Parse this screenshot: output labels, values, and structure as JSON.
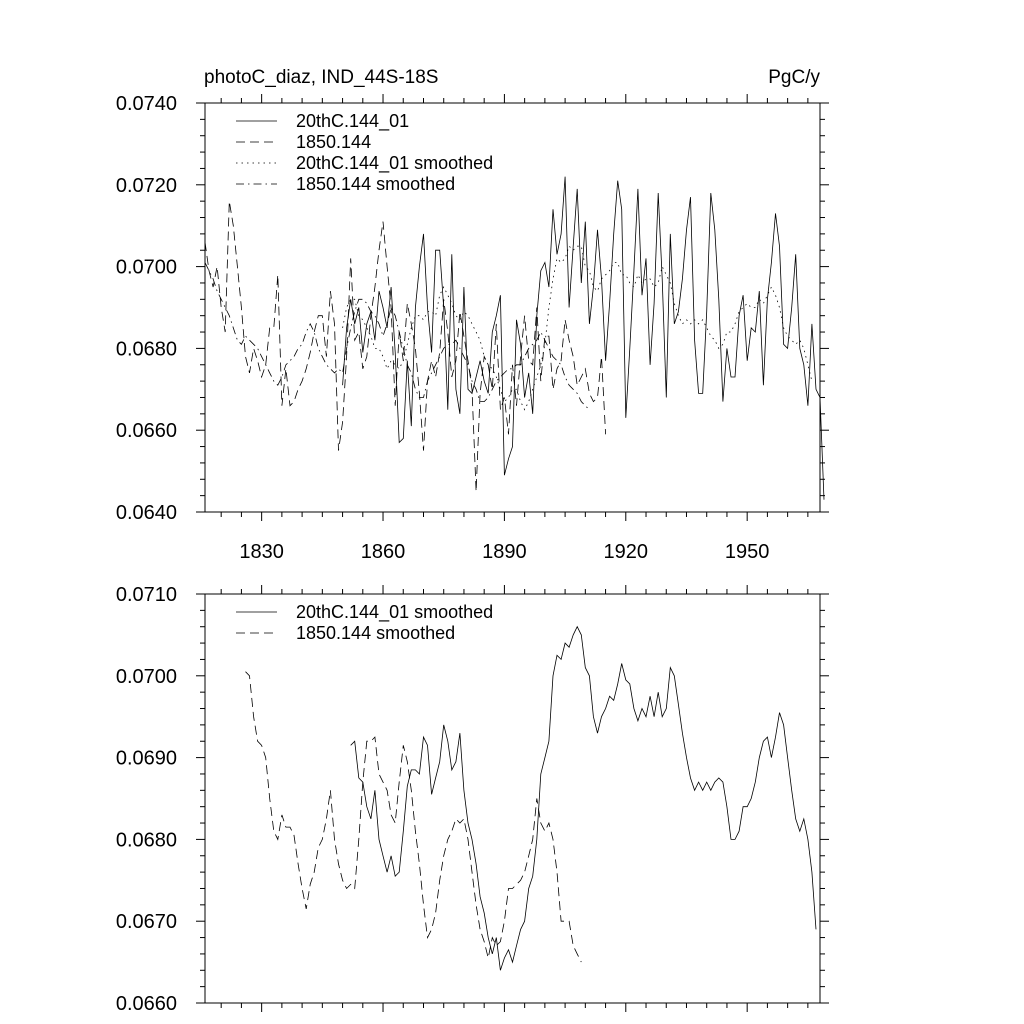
{
  "chart_data": [
    {
      "type": "line",
      "title": "photoC_diaz, IND_44S-18S",
      "units": "PgC/y",
      "xlim": [
        1816,
        1968
      ],
      "ylim": [
        0.064,
        0.074
      ],
      "xticks": [
        1830,
        1860,
        1890,
        1920,
        1950
      ],
      "xtick_labels": [
        "1830",
        "1860",
        "1890",
        "1920",
        "1950"
      ],
      "yticks": [
        0.064,
        0.066,
        0.068,
        0.07,
        0.072,
        0.074
      ],
      "ytick_labels": [
        "0.0640",
        "0.0660",
        "0.0680",
        "0.0700",
        "0.0720",
        "0.0740"
      ],
      "legend_position": "top-left",
      "series": [
        {
          "name": "20thC.144_01",
          "style": "solid",
          "x_start": 1850,
          "values": [
            0.0671,
            0.0685,
            0.0692,
            0.0686,
            0.069,
            0.0679,
            0.0686,
            0.0689,
            0.0682,
            0.0694,
            0.069,
            0.0685,
            0.0695,
            0.0679,
            0.0657,
            0.0658,
            0.0677,
            0.0661,
            0.069,
            0.07,
            0.0708,
            0.069,
            0.0679,
            0.0704,
            0.0704,
            0.069,
            0.0665,
            0.0703,
            0.067,
            0.0664,
            0.0695,
            0.067,
            0.0669,
            0.0673,
            0.0677,
            0.0672,
            0.0669,
            0.0684,
            0.0688,
            0.0693,
            0.0649,
            0.0653,
            0.0656,
            0.0687,
            0.0681,
            0.0668,
            0.0674,
            0.0664,
            0.0688,
            0.0699,
            0.0701,
            0.0695,
            0.0714,
            0.0703,
            0.0708,
            0.0722,
            0.069,
            0.0705,
            0.0719,
            0.0696,
            0.0711,
            0.0686,
            0.0695,
            0.0709,
            0.0697,
            0.0677,
            0.0691,
            0.0708,
            0.0721,
            0.0714,
            0.0663,
            0.068,
            0.0699,
            0.0719,
            0.0693,
            0.0702,
            0.0676,
            0.0691,
            0.0718,
            0.0697,
            0.0668,
            0.0708,
            0.0686,
            0.0689,
            0.0697,
            0.0709,
            0.0717,
            0.0682,
            0.0669,
            0.0669,
            0.0689,
            0.0718,
            0.0709,
            0.0692,
            0.0667,
            0.068,
            0.0673,
            0.0673,
            0.0688,
            0.0693,
            0.0677,
            0.0685,
            0.0684,
            0.0694,
            0.0671,
            0.0692,
            0.0701,
            0.0713,
            0.0705,
            0.0681,
            0.068,
            0.069,
            0.0703,
            0.068,
            0.0676,
            0.0666,
            0.0686,
            0.067,
            0.0668,
            0.0643
          ]
        },
        {
          "name": "1850.144",
          "style": "dashed",
          "x_start": 1816,
          "values": [
            0.0706,
            0.0699,
            0.0695,
            0.07,
            0.069,
            0.0684,
            0.0716,
            0.071,
            0.07,
            0.069,
            0.0678,
            0.0674,
            0.068,
            0.0677,
            0.0673,
            0.0676,
            0.0685,
            0.0685,
            0.0698,
            0.0666,
            0.0675,
            0.0666,
            0.0667,
            0.067,
            0.0672,
            0.0675,
            0.0679,
            0.0684,
            0.0688,
            0.0688,
            0.0678,
            0.0694,
            0.0686,
            0.0655,
            0.0662,
            0.0678,
            0.0702,
            0.0682,
            0.0684,
            0.0675,
            0.0678,
            0.0688,
            0.0695,
            0.0704,
            0.0711,
            0.07,
            0.069,
            0.0666,
            0.0684,
            0.0677,
            0.0691,
            0.0686,
            0.068,
            0.0669,
            0.0655,
            0.0672,
            0.0677,
            0.0673,
            0.0679,
            0.0692,
            0.0684,
            0.0673,
            0.0677,
            0.0689,
            0.0683,
            0.0677,
            0.067,
            0.0645,
            0.0669,
            0.0678,
            0.0676,
            0.067,
            0.0686,
            0.0665,
            0.0668,
            0.0659,
            0.0676,
            0.0666,
            0.0678,
            0.0688,
            0.0677,
            0.0676,
            0.069,
            0.0672,
            0.0683,
            0.0683,
            0.067,
            0.0675,
            0.0677,
            0.0687,
            0.0682,
            0.0678,
            0.0671,
            0.0673,
            0.0675,
            0.0669,
            0.0667,
            0.0668,
            0.0678,
            0.0659
          ]
        },
        {
          "name": "20thC.144_01 smoothed",
          "style": "dotted",
          "x_start": 1850,
          "values": [
            0.0685,
            0.069,
            0.0692,
            0.0692,
            0.0688,
            0.0687,
            0.0685,
            0.0683,
            0.068,
            0.068,
            0.0678,
            0.0675,
            0.0677,
            0.0676,
            0.0675,
            0.0677,
            0.0681,
            0.0685,
            0.0688,
            0.0688,
            0.0687,
            0.0689,
            0.0689,
            0.0688,
            0.0693,
            0.0695,
            0.0693,
            0.0691,
            0.0688,
            0.0687,
            0.0689,
            0.0688,
            0.0686,
            0.0684,
            0.0682,
            0.0678,
            0.0676,
            0.0675,
            0.0673,
            0.067,
            0.0667,
            0.0668,
            0.067,
            0.067,
            0.0667,
            0.0665,
            0.0667,
            0.067,
            0.0673,
            0.0676,
            0.0681,
            0.069,
            0.0697,
            0.0702,
            0.0701,
            0.0702,
            0.0705,
            0.0704,
            0.0705,
            0.0705,
            0.07,
            0.0699,
            0.0695,
            0.0694,
            0.0697,
            0.0698,
            0.0699,
            0.0701,
            0.0701,
            0.0698,
            0.0698,
            0.0696,
            0.0695,
            0.0698,
            0.0696,
            0.0697,
            0.0697,
            0.0695,
            0.0696,
            0.07,
            0.0698,
            0.0696,
            0.0691,
            0.0688,
            0.0686,
            0.0687,
            0.0686,
            0.0687,
            0.0686,
            0.0687,
            0.0685,
            0.0683,
            0.0682,
            0.068,
            0.0681,
            0.0684,
            0.0684,
            0.0686,
            0.0689,
            0.069,
            0.0691,
            0.069,
            0.069,
            0.0692,
            0.0691,
            0.0693,
            0.0695,
            0.0693,
            0.069,
            0.0685,
            0.0683,
            0.0682,
            0.0681,
            0.0682,
            0.068,
            0.0676,
            0.0672
          ]
        },
        {
          "name": "1850.144 smoothed",
          "style": "dashdot",
          "x_start": 1816,
          "values": [
            0.0701,
            0.0699,
            0.0697,
            0.0694,
            0.0692,
            0.069,
            0.0688,
            0.0685,
            0.0682,
            0.0681,
            0.0683,
            0.0682,
            0.0681,
            0.068,
            0.0678,
            0.0676,
            0.0674,
            0.0672,
            0.0671,
            0.0673,
            0.0676,
            0.0677,
            0.0678,
            0.068,
            0.0681,
            0.0684,
            0.0686,
            0.0684,
            0.068,
            0.0678,
            0.0676,
            0.0675,
            0.0674,
            0.0675,
            0.0674,
            0.068,
            0.0685,
            0.0689,
            0.0692,
            0.0692,
            0.0691,
            0.0689,
            0.0688,
            0.0686,
            0.0683,
            0.0686,
            0.069,
            0.0688,
            0.0684,
            0.068,
            0.0676,
            0.0674,
            0.067,
            0.0668,
            0.0668,
            0.0672,
            0.0674,
            0.0676,
            0.0678,
            0.068,
            0.0681,
            0.0681,
            0.0682,
            0.068,
            0.0678,
            0.0676,
            0.0672,
            0.067,
            0.0667,
            0.0667,
            0.0668,
            0.067,
            0.0672,
            0.0673,
            0.0674,
            0.0675,
            0.0675,
            0.0676,
            0.0676,
            0.0678,
            0.068,
            0.0681,
            0.0682,
            0.0684,
            0.0682,
            0.068,
            0.0678,
            0.0677,
            0.0676,
            0.0673,
            0.0671,
            0.067,
            0.0669,
            0.0667,
            0.0666,
            0.0665
          ]
        }
      ]
    },
    {
      "type": "line",
      "xlim": [
        1816,
        1968
      ],
      "ylim": [
        0.066,
        0.071
      ],
      "xticks": [
        1830,
        1860,
        1890,
        1920,
        1950
      ],
      "xtick_labels": [],
      "yticks": [
        0.066,
        0.067,
        0.068,
        0.069,
        0.07,
        0.071
      ],
      "ytick_labels": [
        "0.0660",
        "0.0670",
        "0.0680",
        "0.0690",
        "0.0700",
        "0.0710"
      ],
      "legend_position": "top-left",
      "series": [
        {
          "name": "20thC.144_01 smoothed",
          "style": "solid",
          "x_start": 1852,
          "values": [
            0.06915,
            0.0692,
            0.06875,
            0.0687,
            0.0684,
            0.06825,
            0.0686,
            0.068,
            0.0678,
            0.0676,
            0.0678,
            0.06755,
            0.0676,
            0.0681,
            0.06865,
            0.06885,
            0.06885,
            0.0688,
            0.06925,
            0.06915,
            0.06855,
            0.06875,
            0.06895,
            0.0694,
            0.0692,
            0.06885,
            0.06895,
            0.0693,
            0.0686,
            0.0682,
            0.068,
            0.0677,
            0.0673,
            0.0671,
            0.0668,
            0.0666,
            0.0668,
            0.0664,
            0.06655,
            0.06665,
            0.0665,
            0.0667,
            0.0669,
            0.067,
            0.0674,
            0.06755,
            0.068,
            0.0688,
            0.069,
            0.0692,
            0.07,
            0.07025,
            0.0702,
            0.0704,
            0.07035,
            0.0705,
            0.0706,
            0.0705,
            0.0701,
            0.07,
            0.0695,
            0.0693,
            0.0695,
            0.0696,
            0.06975,
            0.0697,
            0.0699,
            0.07015,
            0.06995,
            0.0699,
            0.0696,
            0.06945,
            0.0696,
            0.0695,
            0.06975,
            0.0695,
            0.0698,
            0.0695,
            0.0696,
            0.0701,
            0.07,
            0.06965,
            0.0693,
            0.069,
            0.06875,
            0.0686,
            0.0687,
            0.0686,
            0.0687,
            0.0686,
            0.0687,
            0.06875,
            0.0687,
            0.0684,
            0.068,
            0.068,
            0.0681,
            0.0684,
            0.0684,
            0.0685,
            0.0687,
            0.069,
            0.0692,
            0.06925,
            0.069,
            0.06925,
            0.06955,
            0.0694,
            0.069,
            0.0686,
            0.06825,
            0.0681,
            0.06825,
            0.068,
            0.0676,
            0.0669
          ]
        },
        {
          "name": "1850.144 smoothed",
          "style": "dashed",
          "x_start": 1826,
          "values": [
            0.07005,
            0.07,
            0.0695,
            0.0692,
            0.06915,
            0.069,
            0.0685,
            0.0681,
            0.068,
            0.0683,
            0.06815,
            0.06815,
            0.06805,
            0.0677,
            0.0674,
            0.06715,
            0.06745,
            0.0676,
            0.0679,
            0.068,
            0.06825,
            0.0686,
            0.068,
            0.0677,
            0.0675,
            0.0674,
            0.06745,
            0.0674,
            0.068,
            0.0687,
            0.0692,
            0.0692,
            0.06925,
            0.0688,
            0.0687,
            0.0686,
            0.0683,
            0.0682,
            0.0687,
            0.06915,
            0.06895,
            0.0686,
            0.0681,
            0.0677,
            0.0672,
            0.0668,
            0.0669,
            0.0671,
            0.0675,
            0.0678,
            0.068,
            0.0681,
            0.06825,
            0.0682,
            0.06825,
            0.068,
            0.0676,
            0.0672,
            0.0669,
            0.06675,
            0.06655,
            0.0668,
            0.0667,
            0.06675,
            0.067,
            0.0674,
            0.0674,
            0.06745,
            0.0675,
            0.0676,
            0.0678,
            0.068,
            0.0685,
            0.0682,
            0.0681,
            0.0682,
            0.068,
            0.0676,
            0.067,
            0.067,
            0.067,
            0.0667,
            0.0666,
            0.0665
          ]
        }
      ]
    }
  ]
}
